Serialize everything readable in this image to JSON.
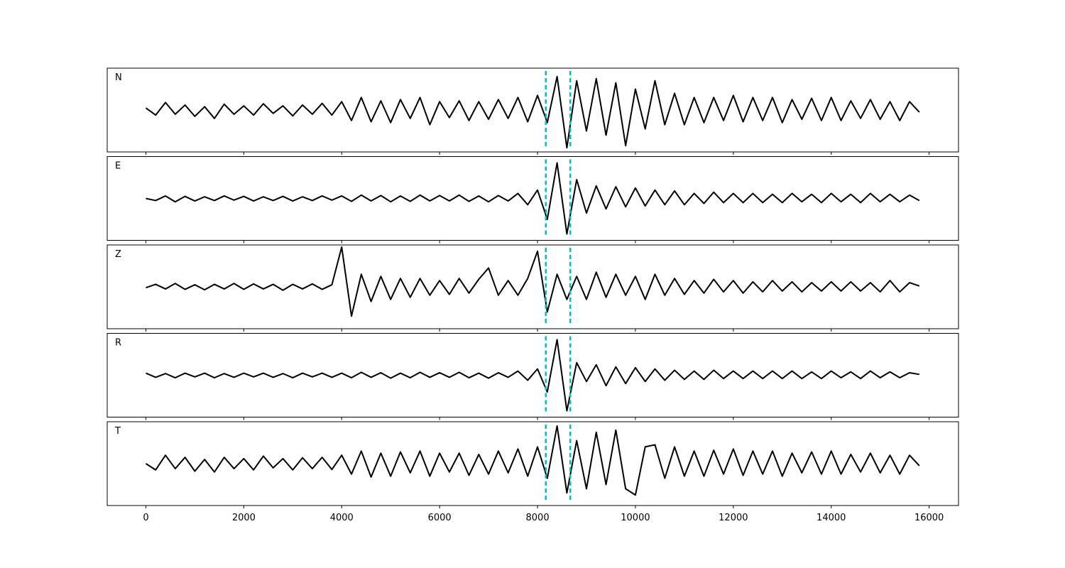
{
  "chart_data": {
    "type": "line",
    "subplots": true,
    "x": [
      0,
      200,
      400,
      600,
      800,
      1000,
      1200,
      1400,
      1600,
      1800,
      2000,
      2200,
      2400,
      2600,
      2800,
      3000,
      3200,
      3400,
      3600,
      3800,
      4000,
      4200,
      4400,
      4600,
      4800,
      5000,
      5200,
      5400,
      5600,
      5800,
      6000,
      6200,
      6400,
      6600,
      6800,
      7000,
      7200,
      7400,
      7600,
      7800,
      8000,
      8200,
      8400,
      8600,
      8800,
      9000,
      9200,
      9400,
      9600,
      9800,
      10000,
      10200,
      10400,
      10600,
      10800,
      11000,
      11200,
      11400,
      11600,
      11800,
      12000,
      12200,
      12400,
      12600,
      12800,
      13000,
      13200,
      13400,
      13600,
      13800,
      14000,
      14200,
      14400,
      14600,
      14800,
      15000,
      15200,
      15400,
      15600,
      15800
    ],
    "xlim": [
      -790,
      16600
    ],
    "xticks": [
      0,
      2000,
      4000,
      6000,
      8000,
      10000,
      12000,
      14000,
      16000
    ],
    "ylim": [
      -1,
      1
    ],
    "vlines": [
      8170,
      8670
    ],
    "vline_color": "#00bfbf",
    "series": [
      {
        "name": "N",
        "color": "#000000",
        "values": [
          0.05,
          -0.12,
          0.18,
          -0.1,
          0.12,
          -0.15,
          0.08,
          -0.2,
          0.14,
          -0.1,
          0.1,
          -0.12,
          0.15,
          -0.08,
          0.1,
          -0.14,
          0.12,
          -0.1,
          0.16,
          -0.12,
          0.2,
          -0.25,
          0.3,
          -0.28,
          0.22,
          -0.3,
          0.25,
          -0.2,
          0.3,
          -0.35,
          0.2,
          -0.18,
          0.22,
          -0.25,
          0.2,
          -0.22,
          0.25,
          -0.2,
          0.3,
          -0.28,
          0.35,
          -0.3,
          0.8,
          -0.9,
          0.7,
          -0.5,
          0.75,
          -0.6,
          0.65,
          -0.85,
          0.5,
          -0.45,
          0.7,
          -0.35,
          0.4,
          -0.35,
          0.3,
          -0.3,
          0.3,
          -0.25,
          0.35,
          -0.28,
          0.3,
          -0.25,
          0.3,
          -0.3,
          0.25,
          -0.22,
          0.28,
          -0.25,
          0.3,
          -0.25,
          0.22,
          -0.2,
          0.25,
          -0.22,
          0.2,
          -0.25,
          0.2,
          -0.05
        ]
      },
      {
        "name": "E",
        "color": "#000000",
        "values": [
          0.0,
          -0.05,
          0.06,
          -0.08,
          0.05,
          -0.06,
          0.04,
          -0.05,
          0.06,
          -0.04,
          0.05,
          -0.06,
          0.04,
          -0.05,
          0.05,
          -0.06,
          0.04,
          -0.05,
          0.06,
          -0.04,
          0.06,
          -0.07,
          0.08,
          -0.06,
          0.07,
          -0.08,
          0.06,
          -0.07,
          0.08,
          -0.06,
          0.07,
          -0.06,
          0.08,
          -0.07,
          0.06,
          -0.08,
          0.07,
          -0.06,
          0.12,
          -0.15,
          0.2,
          -0.5,
          0.85,
          -0.85,
          0.45,
          -0.35,
          0.3,
          -0.25,
          0.28,
          -0.2,
          0.25,
          -0.18,
          0.2,
          -0.15,
          0.18,
          -0.15,
          0.12,
          -0.12,
          0.15,
          -0.1,
          0.12,
          -0.1,
          0.12,
          -0.1,
          0.1,
          -0.1,
          0.12,
          -0.08,
          0.1,
          -0.1,
          0.12,
          -0.08,
          0.1,
          -0.1,
          0.12,
          -0.08,
          0.1,
          -0.08,
          0.08,
          -0.05
        ]
      },
      {
        "name": "Z",
        "color": "#000000",
        "values": [
          -0.02,
          0.06,
          -0.05,
          0.08,
          -0.06,
          0.05,
          -0.07,
          0.06,
          -0.05,
          0.08,
          -0.06,
          0.07,
          -0.05,
          0.06,
          -0.08,
          0.06,
          -0.05,
          0.07,
          -0.06,
          0.05,
          0.95,
          -0.7,
          0.3,
          -0.35,
          0.25,
          -0.3,
          0.2,
          -0.25,
          0.2,
          -0.2,
          0.15,
          -0.18,
          0.2,
          -0.15,
          0.18,
          0.45,
          -0.2,
          0.15,
          -0.2,
          0.2,
          0.85,
          -0.6,
          0.3,
          -0.3,
          0.25,
          -0.3,
          0.35,
          -0.25,
          0.3,
          -0.2,
          0.25,
          -0.3,
          0.3,
          -0.2,
          0.2,
          -0.18,
          0.15,
          -0.15,
          0.18,
          -0.12,
          0.15,
          -0.15,
          0.12,
          -0.12,
          0.15,
          -0.1,
          0.12,
          -0.12,
          0.1,
          -0.1,
          0.12,
          -0.1,
          0.12,
          -0.1,
          0.1,
          -0.12,
          0.15,
          -0.12,
          0.1,
          0.02
        ]
      },
      {
        "name": "R",
        "color": "#000000",
        "values": [
          0.05,
          -0.05,
          0.04,
          -0.06,
          0.05,
          -0.04,
          0.05,
          -0.06,
          0.04,
          -0.05,
          0.05,
          -0.04,
          0.05,
          -0.05,
          0.04,
          -0.06,
          0.05,
          -0.04,
          0.05,
          -0.05,
          0.05,
          -0.06,
          0.07,
          -0.05,
          0.06,
          -0.07,
          0.05,
          -0.06,
          0.07,
          -0.05,
          0.06,
          -0.05,
          0.07,
          -0.06,
          0.05,
          -0.07,
          0.06,
          -0.05,
          0.1,
          -0.12,
          0.15,
          -0.4,
          0.85,
          -0.85,
          0.3,
          -0.15,
          0.25,
          -0.25,
          0.2,
          -0.2,
          0.18,
          -0.15,
          0.15,
          -0.12,
          0.12,
          -0.1,
          0.1,
          -0.1,
          0.12,
          -0.08,
          0.1,
          -0.08,
          0.1,
          -0.08,
          0.1,
          -0.08,
          0.1,
          -0.08,
          0.08,
          -0.08,
          0.1,
          -0.06,
          0.08,
          -0.08,
          0.1,
          -0.06,
          0.08,
          -0.06,
          0.06,
          0.02
        ]
      },
      {
        "name": "T",
        "color": "#000000",
        "values": [
          0.0,
          -0.15,
          0.2,
          -0.12,
          0.15,
          -0.18,
          0.1,
          -0.2,
          0.15,
          -0.12,
          0.12,
          -0.15,
          0.18,
          -0.1,
          0.12,
          -0.15,
          0.14,
          -0.12,
          0.15,
          -0.14,
          0.2,
          -0.25,
          0.3,
          -0.32,
          0.25,
          -0.3,
          0.28,
          -0.22,
          0.3,
          -0.3,
          0.25,
          -0.2,
          0.25,
          -0.28,
          0.22,
          -0.25,
          0.3,
          -0.22,
          0.35,
          -0.3,
          0.4,
          -0.35,
          0.9,
          -0.7,
          0.55,
          -0.6,
          0.75,
          -0.5,
          0.8,
          -0.6,
          -0.75,
          0.4,
          0.45,
          -0.35,
          0.4,
          -0.3,
          0.3,
          -0.3,
          0.32,
          -0.25,
          0.35,
          -0.28,
          0.3,
          -0.25,
          0.3,
          -0.3,
          0.25,
          -0.22,
          0.28,
          -0.25,
          0.3,
          -0.25,
          0.22,
          -0.2,
          0.25,
          -0.22,
          0.2,
          -0.25,
          0.2,
          -0.05
        ]
      }
    ]
  }
}
